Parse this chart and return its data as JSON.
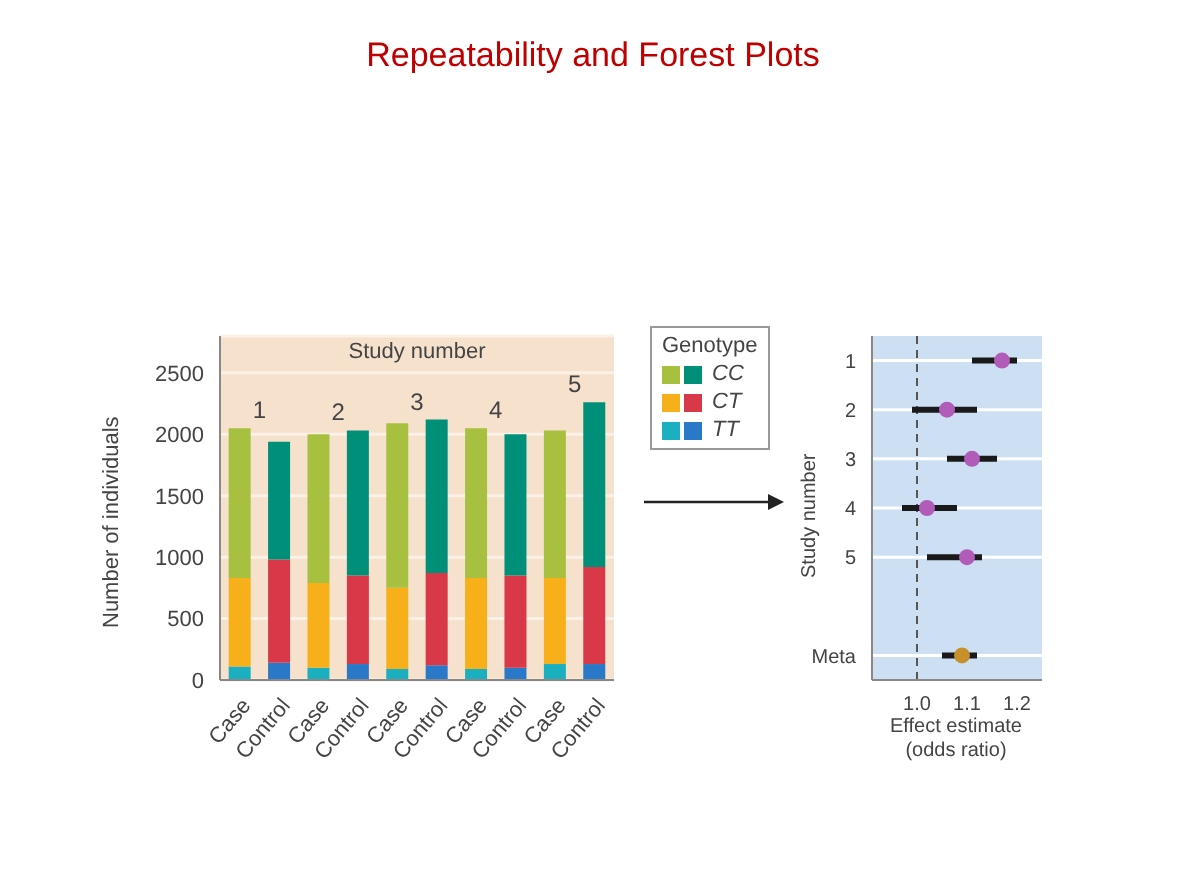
{
  "chart_data": [
    {
      "type": "bar",
      "title": "Repeatability and Forest Plots",
      "ylabel": "Number of individuals",
      "stacked": true,
      "legend": "right",
      "legend_title": "Genotype",
      "grid": "y",
      "categories": [
        "Case",
        "Control",
        "Case",
        "Control",
        "Case",
        "Control",
        "Case",
        "Control",
        "Case",
        "Control"
      ],
      "series": [
        {
          "name": "TT",
          "colors": [
            "#1ab0c0",
            "#2a78c8",
            "#1ab0c0",
            "#2a78c8",
            "#1ab0c0",
            "#2a78c8",
            "#1ab0c0",
            "#2a78c8",
            "#1ab0c0",
            "#2a78c8"
          ],
          "values": [
            110,
            140,
            100,
            130,
            90,
            120,
            90,
            100,
            130,
            130
          ]
        },
        {
          "name": "CT",
          "colors": [
            "#f8b01a",
            "#d83848",
            "#f8b01a",
            "#d83848",
            "#f8b01a",
            "#d83848",
            "#f8b01a",
            "#d83848",
            "#f8b01a",
            "#d83848"
          ],
          "values": [
            720,
            840,
            690,
            720,
            660,
            750,
            740,
            750,
            700,
            790
          ]
        },
        {
          "name": "CC",
          "colors": [
            "#a8c040",
            "#00907a",
            "#a8c040",
            "#00907a",
            "#a8c040",
            "#00907a",
            "#a8c040",
            "#00907a",
            "#a8c040",
            "#00907a"
          ],
          "values": [
            1220,
            960,
            1210,
            1180,
            1340,
            1250,
            1220,
            1150,
            1200,
            1340
          ]
        }
      ],
      "ylim": [
        0,
        2800
      ],
      "yticks": [
        0,
        500,
        1000,
        1500,
        2000,
        2500
      ],
      "annotations": [
        "Study number",
        "1",
        "2",
        "3",
        "4",
        "5"
      ]
    },
    {
      "type": "scatter",
      "orientation": "horizontal",
      "xlabel": "Effect estimate\n(odds ratio)",
      "ylabel": "Study number",
      "grid": "y",
      "categories": [
        "1",
        "2",
        "3",
        "4",
        "5",
        null,
        "Meta"
      ],
      "series": [
        {
          "colors": [
            "#b05cb8",
            "#b05cb8",
            "#b05cb8",
            "#b05cb8",
            "#b05cb8",
            null,
            "#c8902a"
          ],
          "values": [
            1.17,
            1.06,
            1.11,
            1.02,
            1.1,
            null,
            1.09
          ],
          "errors": [
            [
              1.11,
              1.2
            ],
            [
              0.99,
              1.12
            ],
            [
              1.06,
              1.16
            ],
            [
              0.97,
              1.08
            ],
            [
              1.02,
              1.13
            ],
            null,
            [
              1.05,
              1.12
            ]
          ]
        }
      ],
      "xlim": [
        0.91,
        1.25
      ],
      "xticks": [
        {
          "value": 1,
          "label": "1.0"
        },
        {
          "value": 1.1,
          "label": "1.1"
        },
        {
          "value": 1.2,
          "label": "1.2"
        }
      ],
      "ref_lines": [
        {
          "axis": "x",
          "value": 1,
          "line_style": "dashed",
          "color": "#555555"
        }
      ]
    }
  ]
}
